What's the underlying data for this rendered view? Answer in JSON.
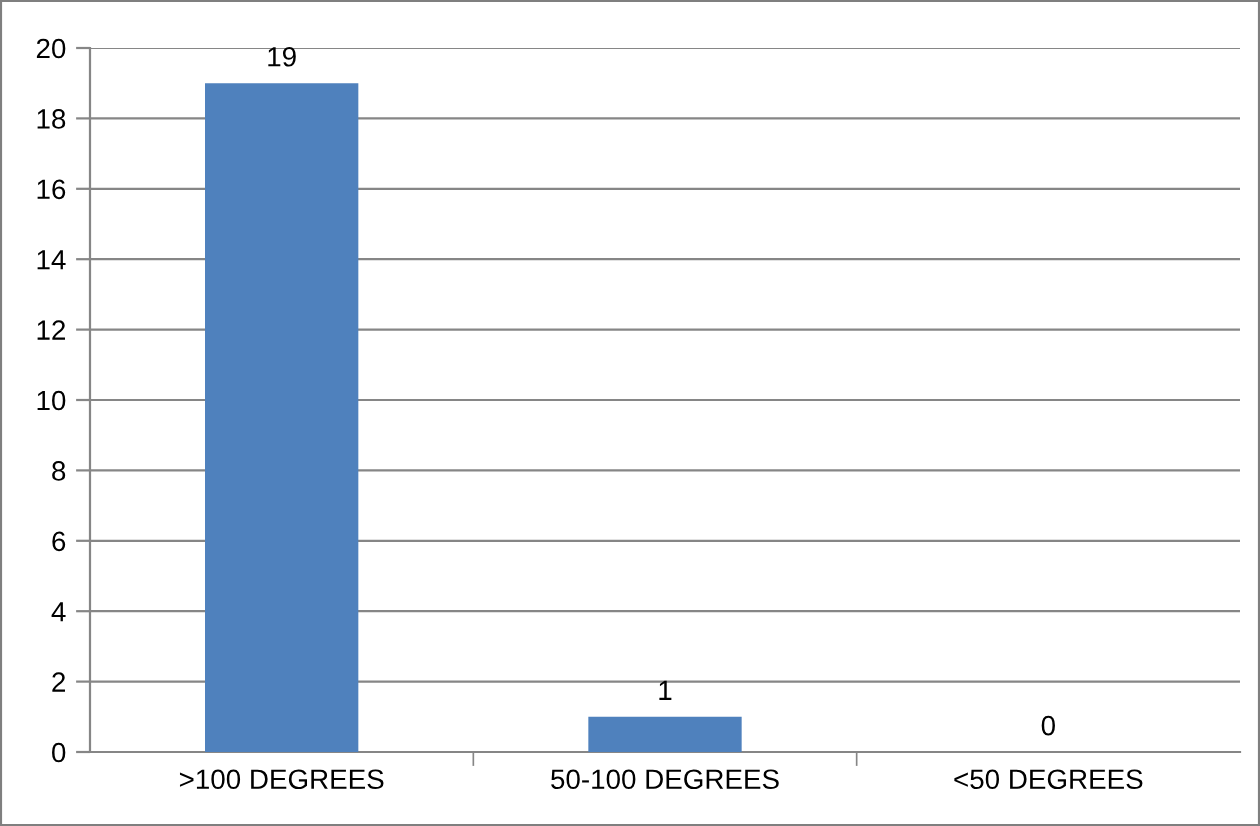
{
  "chart_data": {
    "type": "bar",
    "categories": [
      ">100 DEGREES",
      "50-100 DEGREES",
      "<50 DEGREES"
    ],
    "values": [
      19,
      1,
      0
    ],
    "color": "#4f81bd",
    "ylim": [
      0,
      20
    ],
    "yticks": [
      0,
      2,
      4,
      6,
      8,
      10,
      12,
      14,
      16,
      18,
      20
    ],
    "grid": "y",
    "data_labels": true,
    "legend": false
  }
}
